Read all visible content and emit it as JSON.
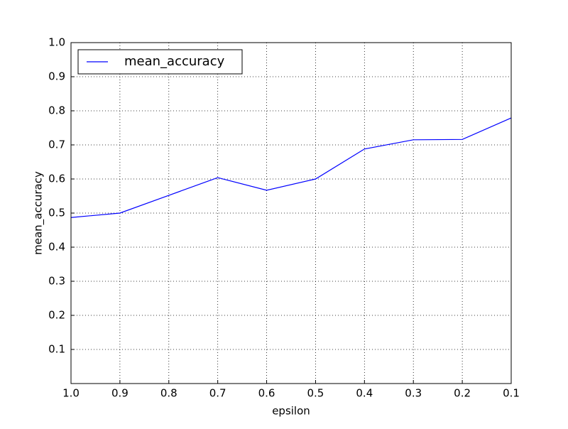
{
  "chart_data": {
    "type": "line",
    "xlabel": "epsilon",
    "ylabel": "mean_accuracy",
    "x": [
      1,
      0.9,
      0.8,
      0.7,
      0.6,
      0.5,
      0.4,
      0.3,
      0.2,
      0.1
    ],
    "series": [
      {
        "name": "mean_accuracy",
        "color": "#0000ff",
        "values": [
          0.487,
          0.5,
          0.552,
          0.604,
          0.567,
          0.6,
          0.688,
          0.715,
          0.716,
          0.779
        ]
      }
    ],
    "xlim": [
      1,
      0.1
    ],
    "xticks": [
      {
        "value": 1,
        "label": "1.0"
      },
      0.9,
      0.8,
      0.7,
      0.6,
      0.5,
      0.4,
      0.3,
      0.2,
      0.1
    ],
    "ylim": [
      0,
      1
    ],
    "yticks": [
      0.1,
      0.2,
      0.3,
      0.4,
      0.5,
      0.6,
      0.7,
      0.8,
      0.9,
      {
        "value": 1,
        "label": "1.0"
      }
    ],
    "grid": true,
    "legend": "upper left"
  }
}
